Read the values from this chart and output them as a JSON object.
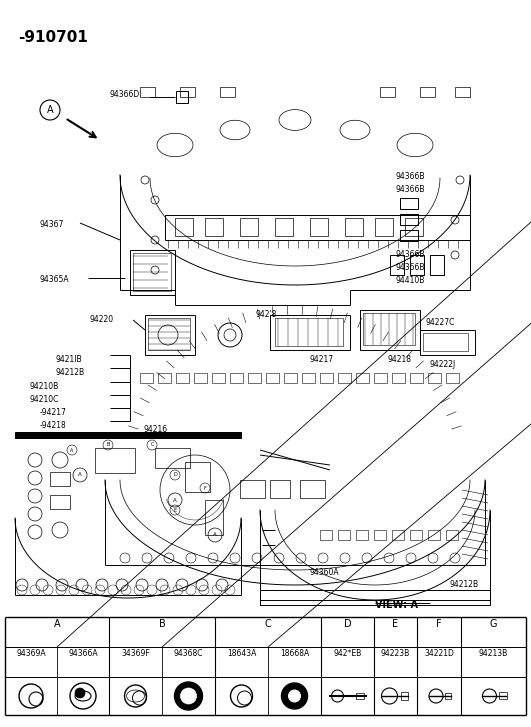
{
  "title": "-910701",
  "bg_color": "#ffffff",
  "fig_width": 5.31,
  "fig_height": 7.27,
  "dpi": 100,
  "table_header": [
    "A",
    "B",
    "C",
    "D",
    "E",
    "F",
    "G"
  ],
  "part_numbers": [
    "94369A",
    "94366A",
    "34369F",
    "94368C",
    "18643A",
    "18668A",
    "942*EB",
    "94223B",
    "34221D",
    "94213B"
  ],
  "view_label": "VIEW: A",
  "lw": 0.7
}
